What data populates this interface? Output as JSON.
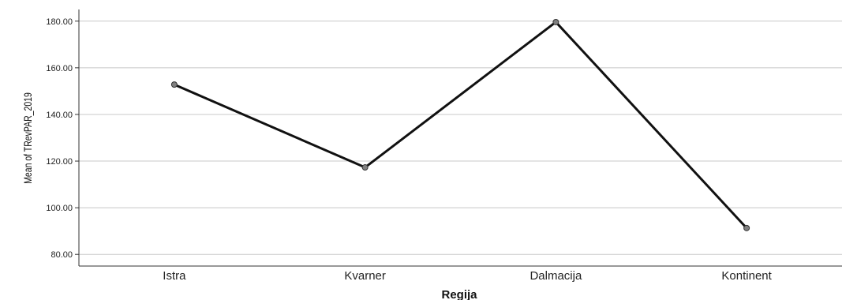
{
  "chart_data": {
    "type": "line",
    "title": "",
    "xlabel": "Regija",
    "ylabel": "Mean of TRevPAR_2019",
    "categories": [
      "Istra",
      "Kvarner",
      "Dalmacija",
      "Kontinent"
    ],
    "series": [
      {
        "values": [
          152.8,
          117.3,
          179.6,
          91.3
        ]
      }
    ],
    "ylim": [
      75,
      185
    ],
    "y_ticks": [
      "80.00",
      "100.00",
      "120.00",
      "140.00",
      "160.00",
      "180.00"
    ],
    "grid": "horizontal",
    "legend": "none",
    "colors": {
      "line": "#111111",
      "marker_fill": "#808080",
      "marker_stroke": "#333333",
      "grid": "#c8c8c8",
      "axis": "#333333"
    }
  }
}
